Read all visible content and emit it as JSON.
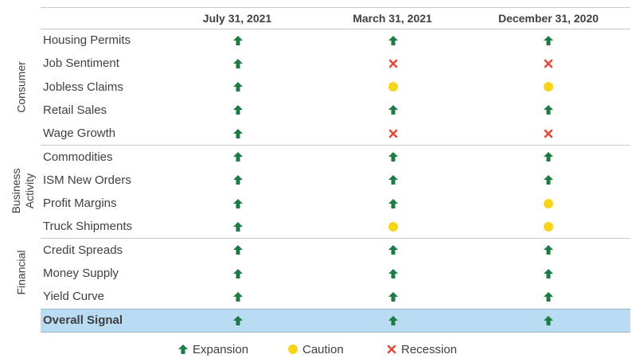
{
  "chart_data": {
    "type": "table",
    "columns": [
      "July 31, 2021",
      "March 31, 2021",
      "December 31, 2020"
    ],
    "groups": [
      {
        "name": "Consumer",
        "rows": [
          {
            "indicator": "Housing Permits",
            "values": [
              "Expansion",
              "Expansion",
              "Expansion"
            ]
          },
          {
            "indicator": "Job Sentiment",
            "values": [
              "Expansion",
              "Recession",
              "Recession"
            ]
          },
          {
            "indicator": "Jobless Claims",
            "values": [
              "Expansion",
              "Caution",
              "Caution"
            ]
          },
          {
            "indicator": "Retail Sales",
            "values": [
              "Expansion",
              "Expansion",
              "Expansion"
            ]
          },
          {
            "indicator": "Wage Growth",
            "values": [
              "Expansion",
              "Recession",
              "Recession"
            ]
          }
        ]
      },
      {
        "name": "Business Activity",
        "rows": [
          {
            "indicator": "Commodities",
            "values": [
              "Expansion",
              "Expansion",
              "Expansion"
            ]
          },
          {
            "indicator": "ISM New Orders",
            "values": [
              "Expansion",
              "Expansion",
              "Expansion"
            ]
          },
          {
            "indicator": "Profit Margins",
            "values": [
              "Expansion",
              "Expansion",
              "Caution"
            ]
          },
          {
            "indicator": "Truck Shipments",
            "values": [
              "Expansion",
              "Caution",
              "Caution"
            ]
          }
        ]
      },
      {
        "name": "Financial",
        "rows": [
          {
            "indicator": "Credit Spreads",
            "values": [
              "Expansion",
              "Expansion",
              "Expansion"
            ]
          },
          {
            "indicator": "Money Supply",
            "values": [
              "Expansion",
              "Expansion",
              "Expansion"
            ]
          },
          {
            "indicator": "Yield Curve",
            "values": [
              "Expansion",
              "Expansion",
              "Expansion"
            ]
          }
        ]
      }
    ],
    "overall": {
      "indicator": "Overall Signal",
      "values": [
        "Expansion",
        "Expansion",
        "Expansion"
      ]
    },
    "legend": [
      {
        "label": "Expansion",
        "symbol": "up-arrow-icon",
        "color": "#1e7b45"
      },
      {
        "label": "Caution",
        "symbol": "circle-icon",
        "color": "#f7d417"
      },
      {
        "label": "Recession",
        "symbol": "x-icon",
        "color": "#e0493b"
      }
    ],
    "highlight_color": "#b9dcf3"
  }
}
